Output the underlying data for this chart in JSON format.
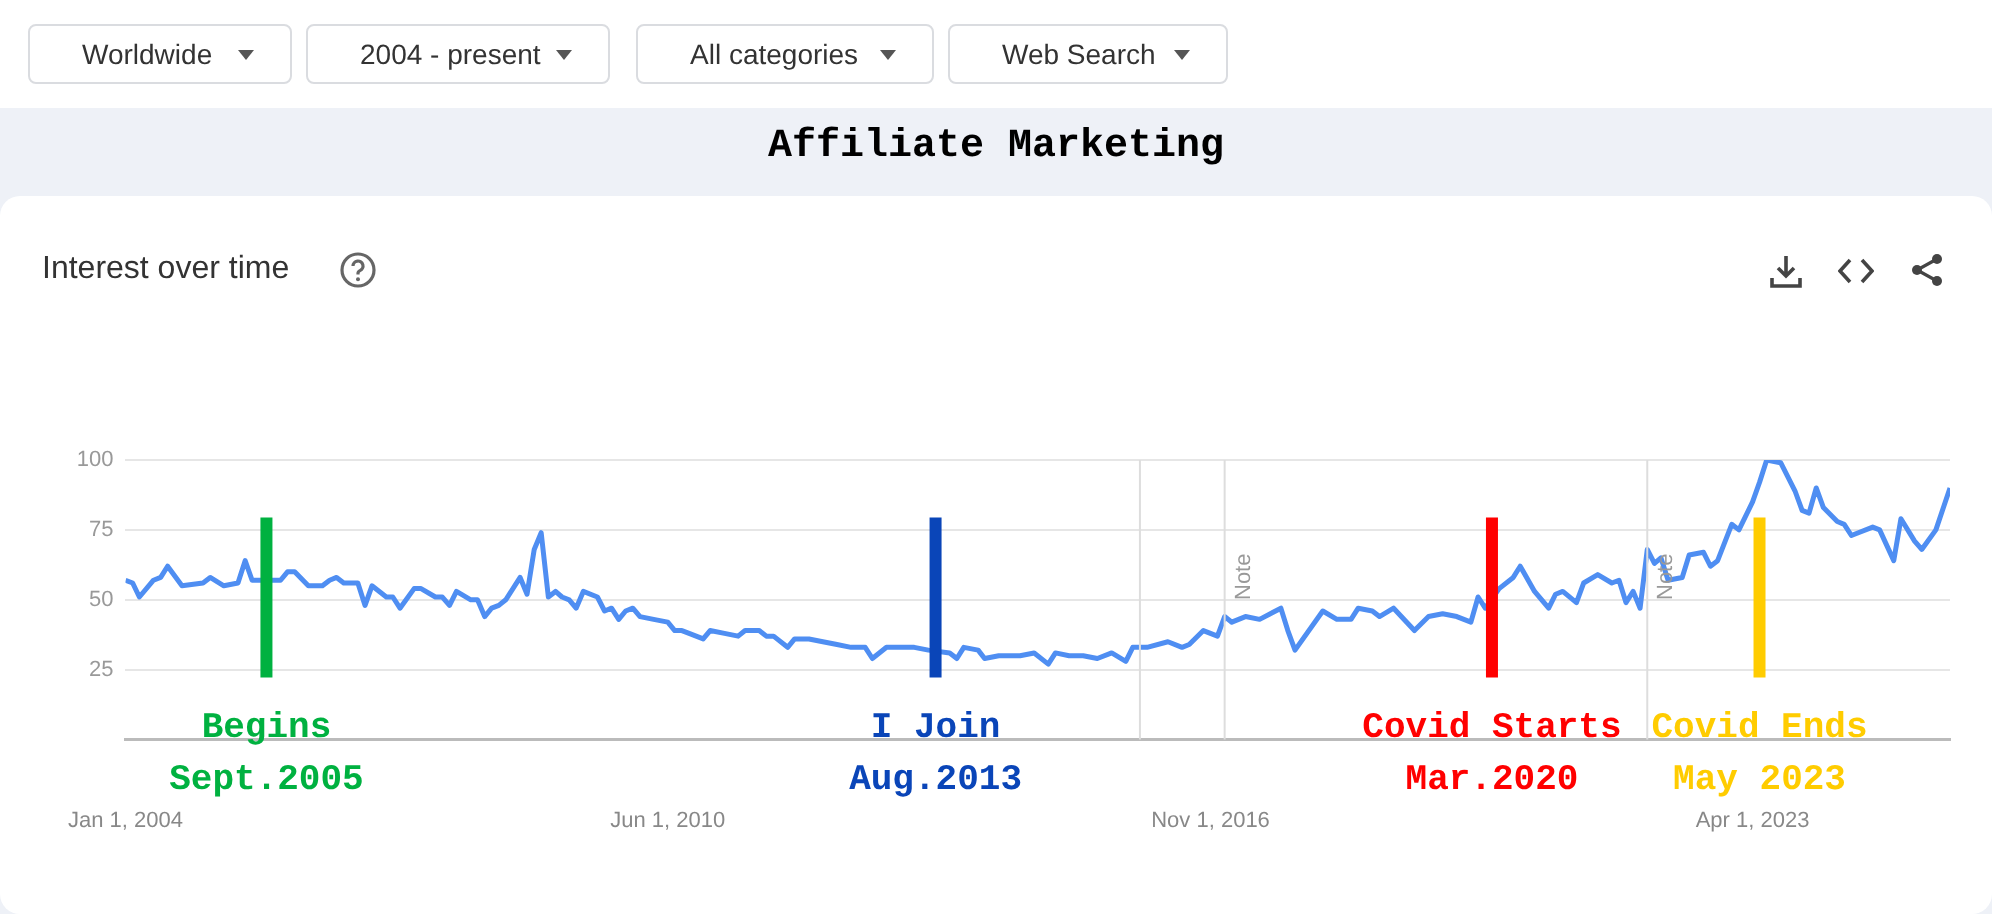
{
  "chart_data": {
    "type": "line",
    "title": "Affiliate Marketing",
    "subtitle": "Interest over time",
    "annotations": [
      "Worldwide",
      "2004 - present",
      "All categories",
      "Web Search"
    ],
    "series": [
      {
        "color": "#4f8ef2",
        "x": [
          "2004-01",
          "2004-02",
          "2004-03",
          "2004-05",
          "2004-06",
          "2004-07",
          "2004-09",
          "2004-12",
          "2005-01",
          "2005-03",
          "2005-05",
          "2005-06",
          "2005-07",
          "2005-11",
          "2005-12",
          "2006-01",
          "2006-03",
          "2006-05",
          "2006-06",
          "2006-07",
          "2006-08",
          "2006-10",
          "2006-11",
          "2006-12",
          "2007-02",
          "2007-03",
          "2007-04",
          "2007-06",
          "2007-07",
          "2007-09",
          "2007-10",
          "2007-11",
          "2007-12",
          "2008-02",
          "2008-03",
          "2008-04",
          "2008-05",
          "2008-06",
          "2008-07",
          "2008-09",
          "2008-10",
          "2008-11",
          "2008-12",
          "2009-01",
          "2009-02",
          "2009-03",
          "2009-04",
          "2009-05",
          "2009-06",
          "2009-08",
          "2009-09",
          "2009-10",
          "2009-11",
          "2009-12",
          "2010-01",
          "2010-02",
          "2010-04",
          "2010-06",
          "2010-07",
          "2010-08",
          "2010-09",
          "2010-11",
          "2010-12",
          "2011-02",
          "2011-04",
          "2011-05",
          "2011-07",
          "2011-08",
          "2011-09",
          "2011-11",
          "2011-12",
          "2012-02",
          "2012-04",
          "2012-06",
          "2012-08",
          "2012-10",
          "2012-11",
          "2013-01",
          "2013-03",
          "2013-05",
          "2013-07",
          "2013-10",
          "2013-11",
          "2013-12",
          "2014-02",
          "2014-03",
          "2014-05",
          "2014-07",
          "2014-08",
          "2014-10",
          "2014-12",
          "2015-01",
          "2015-03",
          "2015-05",
          "2015-07",
          "2015-09",
          "2015-11",
          "2015-12",
          "2016-02",
          "2016-05",
          "2016-07",
          "2016-08",
          "2016-10",
          "2016-12",
          "2017-01",
          "2017-02",
          "2017-04",
          "2017-06",
          "2017-09",
          "2017-10",
          "2017-11",
          "2018-03",
          "2018-05",
          "2018-07",
          "2018-08",
          "2018-10",
          "2018-11",
          "2019-01",
          "2019-04",
          "2019-06",
          "2019-08",
          "2019-10",
          "2019-12",
          "2020-01",
          "2020-02",
          "2020-04",
          "2020-06",
          "2020-07",
          "2020-09",
          "2020-11",
          "2020-12",
          "2021-01",
          "2021-03",
          "2021-04",
          "2021-06",
          "2021-08",
          "2021-09",
          "2021-10",
          "2021-11",
          "2021-12",
          "2022-01",
          "2022-02",
          "2022-03",
          "2022-04",
          "2022-06",
          "2022-07",
          "2022-09",
          "2022-10",
          "2022-11",
          "2023-01",
          "2023-02",
          "2023-04",
          "2023-05",
          "2023-06",
          "2023-08",
          "2023-10",
          "2023-11",
          "2023-12",
          "2024-01",
          "2024-02",
          "2024-04",
          "2024-05",
          "2024-06",
          "2024-07",
          "2024-09",
          "2024-10",
          "2024-12",
          "2025-01",
          "2025-03",
          "2025-04",
          "2025-06",
          "2025-08"
        ],
        "values": [
          57,
          56,
          51,
          57,
          58,
          62,
          55,
          56,
          58,
          55,
          56,
          64,
          57,
          57,
          60,
          60,
          55,
          55,
          57,
          58,
          56,
          56,
          48,
          55,
          51,
          51,
          47,
          54,
          54,
          51,
          51,
          48,
          53,
          50,
          50,
          44,
          47,
          48,
          50,
          58,
          52,
          68,
          74,
          51,
          53,
          51,
          50,
          47,
          53,
          51,
          46,
          47,
          43,
          46,
          47,
          44,
          43,
          42,
          39,
          39,
          38,
          36,
          39,
          38,
          37,
          39,
          39,
          37,
          37,
          33,
          36,
          36,
          35,
          34,
          33,
          33,
          29,
          33,
          33,
          33,
          32,
          31,
          29,
          33,
          32,
          29,
          30,
          30,
          30,
          31,
          27,
          31,
          30,
          30,
          29,
          31,
          28,
          33,
          33,
          35,
          33,
          34,
          39,
          37,
          44,
          42,
          44,
          43,
          47,
          39,
          32,
          46,
          43,
          43,
          47,
          46,
          44,
          47,
          39,
          44,
          45,
          44,
          42,
          51,
          47,
          54,
          58,
          62,
          53,
          47,
          52,
          53,
          49,
          56,
          59,
          56,
          57,
          49,
          53,
          47,
          68,
          63,
          65,
          57,
          58,
          66,
          67,
          62,
          64,
          77,
          75,
          85,
          92,
          100,
          99,
          89,
          82,
          81,
          90,
          83,
          78,
          77,
          73,
          74,
          76,
          75,
          64,
          79,
          71,
          68,
          75,
          90
        ]
      }
    ],
    "xlim": [
      "2004-01",
      "2025-08"
    ],
    "xticks": [
      {
        "value": "2004-01",
        "label": "Jan 1, 2004"
      },
      {
        "value": "2010-06",
        "label": "Jun 1, 2010"
      },
      {
        "value": "2016-11",
        "label": "Nov 1, 2016"
      },
      {
        "value": "2023-04",
        "label": "Apr 1, 2023"
      }
    ],
    "ylim": [
      0,
      100
    ],
    "yticks": [
      25,
      50,
      75,
      100
    ],
    "grid": "y",
    "legend": false,
    "marker": "none",
    "line_style": "solid",
    "ref_lines": [
      {
        "axis": "x",
        "value": "2016-01"
      },
      {
        "axis": "x",
        "value": "2017-01",
        "label": "Note"
      },
      {
        "axis": "x",
        "value": "2022-01",
        "label": "Note"
      },
      {
        "axis": "x",
        "value": "2005-09",
        "label": "Begins\nSept.2005",
        "color": "#00b140"
      },
      {
        "axis": "x",
        "value": "2013-08",
        "label": "I Join\nAug.2013",
        "color": "#0a45b8"
      },
      {
        "axis": "x",
        "value": "2020-03",
        "label": "Covid Starts\nMar.2020",
        "color": "#ff0000"
      },
      {
        "axis": "x",
        "value": "2023-05",
        "label": "Covid Ends\nMay 2023",
        "color": "#ffcc00"
      }
    ]
  }
}
